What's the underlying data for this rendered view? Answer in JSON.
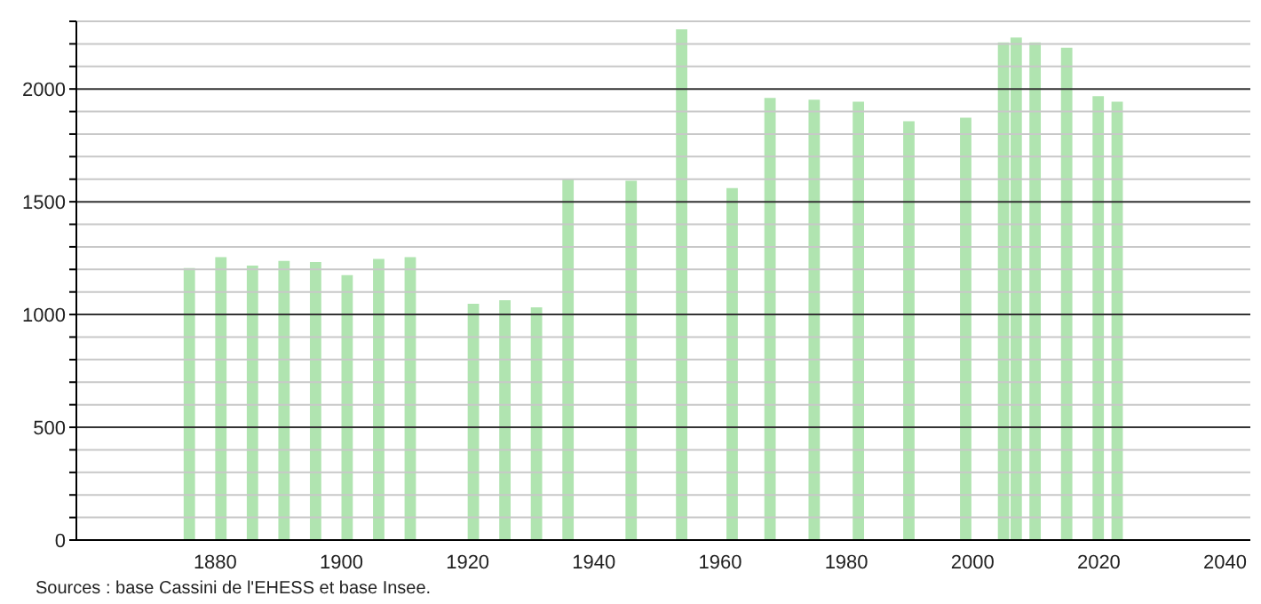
{
  "chart_data": {
    "type": "bar",
    "x": [
      1876,
      1881,
      1886,
      1891,
      1896,
      1901,
      1906,
      1911,
      1921,
      1926,
      1931,
      1936,
      1946,
      1954,
      1962,
      1968,
      1975,
      1982,
      1990,
      1999,
      2005,
      2007,
      2010,
      2015,
      2020,
      2023
    ],
    "values": [
      1206,
      1254,
      1217,
      1238,
      1233,
      1175,
      1246,
      1254,
      1048,
      1063,
      1032,
      1603,
      1593,
      2265,
      1561,
      1960,
      1952,
      1944,
      1857,
      1873,
      2206,
      2228,
      2206,
      2183,
      1968,
      1944
    ],
    "color": "#b0e4b0",
    "xlim": [
      1858,
      2044
    ],
    "xticks": [
      1880,
      1900,
      1920,
      1940,
      1960,
      1980,
      2000,
      2020,
      2040
    ],
    "ylim": [
      0,
      2300
    ],
    "yticks": [
      0,
      {
        "value": 100,
        "label": null
      },
      {
        "value": 200,
        "label": null
      },
      {
        "value": 300,
        "label": null
      },
      {
        "value": 400,
        "label": null
      },
      500,
      {
        "value": 600,
        "label": null
      },
      {
        "value": 700,
        "label": null
      },
      {
        "value": 800,
        "label": null
      },
      {
        "value": 900,
        "label": null
      },
      1000,
      {
        "value": 1100,
        "label": null
      },
      {
        "value": 1200,
        "label": null
      },
      {
        "value": 1300,
        "label": null
      },
      {
        "value": 1400,
        "label": null
      },
      1500,
      {
        "value": 1600,
        "label": null
      },
      {
        "value": 1700,
        "label": null
      },
      {
        "value": 1800,
        "label": null
      },
      {
        "value": 1900,
        "label": null
      },
      2000,
      {
        "value": 2100,
        "label": null
      },
      {
        "value": 2200,
        "label": null
      },
      {
        "value": 2300,
        "label": null
      }
    ],
    "grid": "y",
    "annotations": [
      "Sources : base Cassini de l'EHESS et base Insee."
    ]
  }
}
